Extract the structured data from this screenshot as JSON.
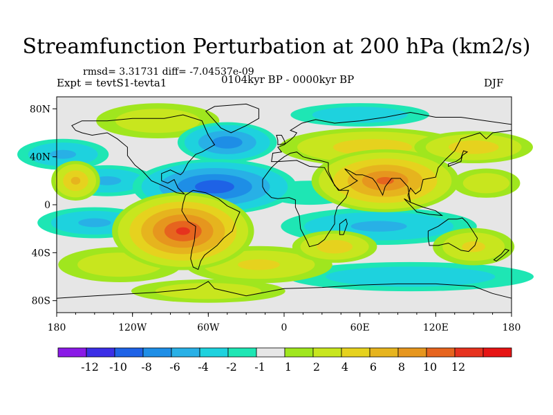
{
  "header": {
    "title": "Streamfunction Perturbation at 200 hPa (km2/s)",
    "stats": "rmsd= 3.31731 diff= -7.04537e-09",
    "experiment": "Expt = tevtS1-tevta1",
    "period": "0104kyr BP - 0000kyr BP",
    "season": "DJF"
  },
  "chart_data": {
    "type": "heatmap",
    "title": "Streamfunction Perturbation at 200 hPa (km2/s)",
    "xlabel": "",
    "ylabel": "",
    "xlim": [
      -180,
      180
    ],
    "ylim": [
      -90,
      90
    ],
    "x_ticks": [
      {
        "value": -180,
        "label": "180"
      },
      {
        "value": -120,
        "label": "120W"
      },
      {
        "value": -60,
        "label": "60W"
      },
      {
        "value": 0,
        "label": "0"
      },
      {
        "value": 60,
        "label": "60E"
      },
      {
        "value": 120,
        "label": "120E"
      },
      {
        "value": 180,
        "label": "180"
      }
    ],
    "y_ticks": [
      {
        "value": 80,
        "label": "80N"
      },
      {
        "value": 40,
        "label": "40N"
      },
      {
        "value": 0,
        "label": "0"
      },
      {
        "value": -40,
        "label": "40S"
      },
      {
        "value": -80,
        "label": "80S"
      }
    ],
    "colorbar": {
      "colors": [
        "#8a1ae6",
        "#3b2ee6",
        "#1e62e6",
        "#1e8ee6",
        "#28b0e6",
        "#1ed2de",
        "#1ee6b4",
        "#e6e6e6",
        "#a0e61e",
        "#c8e61e",
        "#e6d21e",
        "#e6b41e",
        "#e6961e",
        "#e6641e",
        "#e6321e",
        "#e61414"
      ],
      "labels": [
        {
          "boundary": 1,
          "text": "-12"
        },
        {
          "boundary": 2,
          "text": "-10"
        },
        {
          "boundary": 3,
          "text": "-8"
        },
        {
          "boundary": 4,
          "text": "-6"
        },
        {
          "boundary": 5,
          "text": "-4"
        },
        {
          "boundary": 6,
          "text": "-2"
        },
        {
          "boundary": 7,
          "text": "-1"
        },
        {
          "boundary": 8,
          "text": "1"
        },
        {
          "boundary": 9,
          "text": "2"
        },
        {
          "boundary": 10,
          "text": "4"
        },
        {
          "boundary": 11,
          "text": "6"
        },
        {
          "boundary": 12,
          "text": "8"
        },
        {
          "boundary": 13,
          "text": "10"
        },
        {
          "boundary": 14,
          "text": "12"
        }
      ]
    },
    "anomalies": [
      {
        "lon": -100,
        "lat": 70,
        "value": 3,
        "rlon": 40,
        "rlat": 12
      },
      {
        "lon": -45,
        "lat": 52,
        "value": -7,
        "rlon": 28,
        "rlat": 12
      },
      {
        "lon": -175,
        "lat": 42,
        "value": -4,
        "rlon": 28,
        "rlat": 10
      },
      {
        "lon": 70,
        "lat": 48,
        "value": 5,
        "rlon": 55,
        "rlat": 12
      },
      {
        "lon": 150,
        "lat": 48,
        "value": 5,
        "rlon": 35,
        "rlat": 10
      },
      {
        "lon": 60,
        "lat": 75,
        "value": -3,
        "rlon": 45,
        "rlat": 8
      },
      {
        "lon": -55,
        "lat": 15,
        "value": -9,
        "rlon": 45,
        "rlat": 16
      },
      {
        "lon": -140,
        "lat": 20,
        "value": -4,
        "rlon": 30,
        "rlat": 10
      },
      {
        "lon": 80,
        "lat": 20,
        "value": 10,
        "rlon": 40,
        "rlat": 18
      },
      {
        "lon": -165,
        "lat": 20,
        "value": 6,
        "rlon": 14,
        "rlat": 12
      },
      {
        "lon": 160,
        "lat": 18,
        "value": 3,
        "rlon": 22,
        "rlat": 10
      },
      {
        "lon": 20,
        "lat": 10,
        "value": -1.5,
        "rlon": 35,
        "rlat": 10
      },
      {
        "lon": -80,
        "lat": -22,
        "value": 12,
        "rlon": 38,
        "rlat": 22
      },
      {
        "lon": -150,
        "lat": -15,
        "value": -4,
        "rlon": 35,
        "rlat": 10
      },
      {
        "lon": 75,
        "lat": -18,
        "value": -4,
        "rlon": 60,
        "rlat": 12
      },
      {
        "lon": 40,
        "lat": -35,
        "value": 5,
        "rlon": 25,
        "rlat": 10
      },
      {
        "lon": 150,
        "lat": -35,
        "value": 4,
        "rlon": 25,
        "rlat": 12
      },
      {
        "lon": -130,
        "lat": -50,
        "value": 3,
        "rlon": 40,
        "rlat": 12
      },
      {
        "lon": -20,
        "lat": -50,
        "value": 4,
        "rlon": 45,
        "rlat": 12
      },
      {
        "lon": 100,
        "lat": -60,
        "value": -3,
        "rlon": 80,
        "rlat": 10
      },
      {
        "lon": -60,
        "lat": -72,
        "value": 3,
        "rlon": 50,
        "rlat": 8
      }
    ]
  },
  "coastline": {
    "description": "continents",
    "color": "#000000"
  }
}
